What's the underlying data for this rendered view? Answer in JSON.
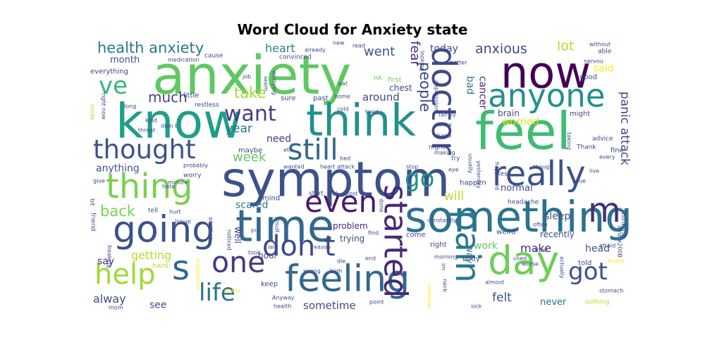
{
  "chart_data": {
    "type": "wordcloud",
    "title": "Word Cloud for Anxiety state",
    "colormap": "viridis",
    "background": "#ffffff",
    "words": [
      {
        "text": "anxiety",
        "weight": 1.0,
        "color": "#5ec962"
      },
      {
        "text": "feel",
        "weight": 0.98,
        "color": "#3fbc73"
      },
      {
        "text": "symptom",
        "weight": 0.95,
        "color": "#3b528b"
      },
      {
        "text": "know",
        "weight": 0.94,
        "color": "#1f9e89"
      },
      {
        "text": "think",
        "weight": 0.9,
        "color": "#21918c"
      },
      {
        "text": "time",
        "weight": 0.9,
        "color": "#31688e"
      },
      {
        "text": "now",
        "weight": 0.9,
        "color": "#440154"
      },
      {
        "text": "something",
        "weight": 0.89,
        "color": "#2c728e"
      },
      {
        "text": "day",
        "weight": 0.85,
        "color": "#6ece58"
      },
      {
        "text": "going",
        "weight": 0.83,
        "color": "#3b528b"
      },
      {
        "text": "feeling",
        "weight": 0.83,
        "color": "#31688e"
      },
      {
        "text": "doctor",
        "weight": 0.8,
        "color": "#3e4989"
      },
      {
        "text": "thing",
        "weight": 0.8,
        "color": "#7ad151"
      },
      {
        "text": "really",
        "weight": 0.8,
        "color": "#3b528b"
      },
      {
        "text": "m",
        "weight": 0.8,
        "color": "#472d7b"
      },
      {
        "text": "s",
        "weight": 0.8,
        "color": "#31688e"
      },
      {
        "text": "pain",
        "weight": 0.8,
        "color": "#2a788e"
      },
      {
        "text": "anyone",
        "weight": 0.78,
        "color": "#21918c"
      },
      {
        "text": "started",
        "weight": 0.78,
        "color": "#482878"
      },
      {
        "text": "even",
        "weight": 0.76,
        "color": "#481a6c"
      },
      {
        "text": "still",
        "weight": 0.75,
        "color": "#31688e"
      },
      {
        "text": "one",
        "weight": 0.75,
        "color": "#443983"
      },
      {
        "text": "don t",
        "weight": 0.74,
        "color": "#3e4989"
      },
      {
        "text": "help",
        "weight": 0.74,
        "color": "#a0da39"
      },
      {
        "text": "thought",
        "weight": 0.72,
        "color": "#3b528b"
      },
      {
        "text": "life",
        "weight": 0.7,
        "color": "#2c728e"
      },
      {
        "text": "got",
        "weight": 0.7,
        "color": "#3b528b"
      },
      {
        "text": "go",
        "weight": 0.7,
        "color": "#21918c"
      },
      {
        "text": "ve",
        "weight": 0.7,
        "color": "#35b779"
      },
      {
        "text": "want",
        "weight": 0.67,
        "color": "#433e85"
      },
      {
        "text": "health anxiety",
        "weight": 0.52,
        "color": "#2a788e"
      },
      {
        "text": "people",
        "weight": 0.52,
        "color": "#3e4989"
      },
      {
        "text": "back",
        "weight": 0.52,
        "color": "#7ad151"
      },
      {
        "text": "take",
        "weight": 0.52,
        "color": "#a0da39"
      },
      {
        "text": "much",
        "weight": 0.5,
        "color": "#414487"
      },
      {
        "text": "anxious",
        "weight": 0.48,
        "color": "#3e4989"
      },
      {
        "text": "lot",
        "weight": 0.48,
        "color": "#b5de2b"
      },
      {
        "text": "fear",
        "weight": 0.46,
        "color": "#482878"
      },
      {
        "text": "went",
        "weight": 0.46,
        "color": "#3b528b"
      },
      {
        "text": "week",
        "weight": 0.46,
        "color": "#5ec962"
      },
      {
        "text": "year",
        "weight": 0.42,
        "color": "#2c728e"
      },
      {
        "text": "panic attack",
        "weight": 0.42,
        "color": "#414487"
      },
      {
        "text": "will",
        "weight": 0.42,
        "color": "#b5de2b"
      },
      {
        "text": "felt",
        "weight": 0.42,
        "color": "#3b528b"
      },
      {
        "text": "heart",
        "weight": 0.4,
        "color": "#26828e"
      },
      {
        "text": "make",
        "weight": 0.4,
        "color": "#46327e"
      },
      {
        "text": "alway",
        "weight": 0.4,
        "color": "#3e4989"
      },
      {
        "text": "getting",
        "weight": 0.4,
        "color": "#b5de2b"
      },
      {
        "text": "sometime",
        "weight": 0.38,
        "color": "#3e4989"
      },
      {
        "text": "around",
        "weight": 0.38,
        "color": "#3e4989"
      },
      {
        "text": "cancer",
        "weight": 0.36,
        "color": "#482878"
      },
      {
        "text": "bad",
        "weight": 0.36,
        "color": "#2a788e"
      },
      {
        "text": "anything",
        "weight": 0.36,
        "color": "#3b528b"
      },
      {
        "text": "scared",
        "weight": 0.36,
        "color": "#2a788e"
      },
      {
        "text": "sleep",
        "weight": 0.36,
        "color": "#3b528b"
      },
      {
        "text": "today",
        "weight": 0.34,
        "color": "#3e4989"
      },
      {
        "text": "said",
        "weight": 0.34,
        "color": "#fde725"
      },
      {
        "text": "worried",
        "weight": 0.34,
        "color": "#d8e219"
      },
      {
        "text": "need",
        "weight": 0.34,
        "color": "#46327e"
      },
      {
        "text": "say",
        "weight": 0.34,
        "color": "#443983"
      },
      {
        "text": "head",
        "weight": 0.34,
        "color": "#3b528b"
      },
      {
        "text": "see",
        "weight": 0.34,
        "color": "#3e4989"
      },
      {
        "text": "work",
        "weight": 0.34,
        "color": "#5ec962"
      },
      {
        "text": "never",
        "weight": 0.32,
        "color": "#2c728e"
      },
      {
        "text": "way",
        "weight": 0.32,
        "color": "#2a788e"
      },
      {
        "text": "month",
        "weight": 0.32,
        "color": "#3b528b"
      },
      {
        "text": "normal",
        "weight": 0.32,
        "color": "#3e4989"
      },
      {
        "text": "chest",
        "weight": 0.3,
        "color": "#3e4989"
      },
      {
        "text": "brain",
        "weight": 0.3,
        "color": "#3e4989"
      },
      {
        "text": "well",
        "weight": 0.3,
        "color": "#443983"
      },
      {
        "text": "problem",
        "weight": 0.3,
        "color": "#482878"
      },
      {
        "text": "trying",
        "weight": 0.3,
        "color": "#3e4989"
      },
      {
        "text": "recently",
        "weight": 0.3,
        "color": "#3e4989"
      },
      {
        "text": "hour",
        "weight": 0.3,
        "color": "#3e4989"
      },
      {
        "text": "mind",
        "weight": 0.28,
        "color": "#3e4989"
      },
      {
        "text": "thinking",
        "weight": 0.28,
        "color": "#3e4989"
      },
      {
        "text": "everything",
        "weight": 0.28,
        "color": "#3e4989"
      },
      {
        "text": "maybe",
        "weight": 0.28,
        "color": "#3e4989"
      },
      {
        "text": "might",
        "weight": 0.28,
        "color": "#3e4989"
      },
      {
        "text": "good",
        "weight": 0.28,
        "color": "#3e4989"
      },
      {
        "text": "past",
        "weight": 0.28,
        "color": "#3e4989"
      },
      {
        "text": "sure",
        "weight": 0.28,
        "color": "#3e4989"
      },
      {
        "text": "first",
        "weight": 0.28,
        "color": "#7ad151"
      },
      {
        "text": "fine",
        "weight": 0.28,
        "color": "#3e4989"
      },
      {
        "text": "happen",
        "weight": 0.28,
        "color": "#3e4989"
      },
      {
        "text": "told",
        "weight": 0.28,
        "color": "#3e4989"
      },
      {
        "text": "keep",
        "weight": 0.28,
        "color": "#3e4989"
      },
      {
        "text": "body",
        "weight": 0.28,
        "color": "#3e4989"
      },
      {
        "text": "little",
        "weight": 0.28,
        "color": "#3e4989"
      },
      {
        "text": "hard",
        "weight": 0.28,
        "color": "#b5de2b"
      },
      {
        "text": "weird",
        "weight": 0.28,
        "color": "#3e4989"
      },
      {
        "text": "right",
        "weight": 0.28,
        "color": "#3e4989"
      },
      {
        "text": "come",
        "weight": 0.28,
        "color": "#3e4989"
      },
      {
        "text": "Thank",
        "weight": 0.26,
        "color": "#3e4989"
      },
      {
        "text": "advice",
        "weight": 0.26,
        "color": "#3e4989"
      },
      {
        "text": "test",
        "weight": 0.26,
        "color": "#3e4989"
      },
      {
        "text": "headache",
        "weight": 0.26,
        "color": "#3e4989"
      },
      {
        "text": "nothing",
        "weight": 0.26,
        "color": "#b5de2b"
      },
      {
        "text": "issue",
        "weight": 0.26,
        "color": "#3e4989"
      },
      {
        "text": "tell",
        "weight": 0.26,
        "color": "#3e4989"
      },
      {
        "text": "friend",
        "weight": 0.26,
        "color": "#3e4989"
      },
      {
        "text": "try",
        "weight": 0.26,
        "color": "#3e4989"
      },
      {
        "text": "night",
        "weight": 0.26,
        "color": "#3e4989"
      },
      {
        "text": "convinced",
        "weight": 0.26,
        "color": "#3e4989"
      },
      {
        "text": "cause",
        "weight": 0.26,
        "color": "#3e4989"
      },
      {
        "text": "worry",
        "weight": 0.26,
        "color": "#3e4989"
      },
      {
        "text": "restless",
        "weight": 0.26,
        "color": "#3e4989"
      },
      {
        "text": "able",
        "weight": 0.26,
        "color": "#3e4989"
      },
      {
        "text": "start",
        "weight": 0.26,
        "color": "#3e4989"
      },
      {
        "text": "look",
        "weight": 0.24,
        "color": "#3e4989"
      },
      {
        "text": "post",
        "weight": 0.24,
        "color": "#3e4989"
      },
      {
        "text": "done",
        "weight": 0.24,
        "color": "#3e4989"
      },
      {
        "text": "find",
        "weight": 0.24,
        "color": "#3e4989"
      },
      {
        "text": "reason",
        "weight": 0.24,
        "color": "#3e4989"
      },
      {
        "text": "put",
        "weight": 0.24,
        "color": "#3e4989"
      },
      {
        "text": "took",
        "weight": 0.24,
        "color": "#3e4989"
      },
      {
        "text": "last",
        "weight": 0.24,
        "color": "#3e4989"
      },
      {
        "text": "wrong",
        "weight": 0.24,
        "color": "#3e4989"
      },
      {
        "text": "high",
        "weight": 0.24,
        "color": "#3e4989"
      },
      {
        "text": "end",
        "weight": 0.24,
        "color": "#3e4989"
      },
      {
        "text": "talk",
        "weight": 0.24,
        "color": "#3e4989"
      },
      {
        "text": "im",
        "weight": 0.24,
        "color": "#3e4989"
      },
      {
        "text": "die",
        "weight": 0.24,
        "color": "#3e4989"
      },
      {
        "text": "stress",
        "weight": 0.24,
        "color": "#fde725"
      },
      {
        "text": "hurt",
        "weight": 0.24,
        "color": "#3e4989"
      },
      {
        "text": "probably",
        "weight": 0.24,
        "color": "#3e4989"
      },
      {
        "text": "wanted",
        "weight": 0.24,
        "color": "#3e4989"
      },
      {
        "text": "bed",
        "weight": 0.24,
        "color": "#3e4989"
      },
      {
        "text": "heart attack",
        "weight": 0.24,
        "color": "#3e4989"
      },
      {
        "text": "stop",
        "weight": 0.24,
        "color": "#3e4989"
      },
      {
        "text": "eye",
        "weight": 0.24,
        "color": "#3e4989"
      },
      {
        "text": "usually",
        "weight": 0.24,
        "color": "#3e4989"
      },
      {
        "text": "yesterday",
        "weight": 0.24,
        "color": "#3e4989"
      },
      {
        "text": "making",
        "weight": 0.24,
        "color": "#3e4989"
      },
      {
        "text": "hand",
        "weight": 0.24,
        "color": "#3e4989"
      },
      {
        "text": "family",
        "weight": 0.24,
        "color": "#3e4989"
      },
      {
        "text": "okay",
        "weight": 0.24,
        "color": "#3e4989"
      },
      {
        "text": "better",
        "weight": 0.24,
        "color": "#3e4989"
      },
      {
        "text": "depression",
        "weight": 0.24,
        "color": "#3e4989"
      },
      {
        "text": "looking",
        "weight": 0.24,
        "color": "#3e4989"
      },
      {
        "text": "tired",
        "weight": 0.24,
        "color": "#3e4989"
      },
      {
        "text": "cold",
        "weight": 0.24,
        "color": "#3e4989"
      },
      {
        "text": "eat",
        "weight": 0.24,
        "color": "#3e4989"
      },
      {
        "text": "home",
        "weight": 0.24,
        "color": "#3e4989"
      },
      {
        "text": "job",
        "weight": 0.24,
        "color": "#3e4989"
      },
      {
        "text": "seem",
        "weight": 0.24,
        "color": "#3e4989"
      },
      {
        "text": "worrying",
        "weight": 0.24,
        "color": "#3e4989"
      },
      {
        "text": "HA",
        "weight": 0.24,
        "color": "#5ec962"
      },
      {
        "text": "new",
        "weight": 0.24,
        "color": "#3e4989"
      },
      {
        "text": "read",
        "weight": 0.24,
        "color": "#3e4989"
      },
      {
        "text": "already",
        "weight": 0.24,
        "color": "#3e4989"
      },
      {
        "text": "medication",
        "weight": 0.24,
        "color": "#3e4989"
      },
      {
        "text": "without",
        "weight": 0.24,
        "color": "#3e4989"
      },
      {
        "text": "nervou",
        "weight": 0.24,
        "color": "#3e4989"
      },
      {
        "text": "long",
        "weight": 0.24,
        "color": "#3e4989"
      },
      {
        "text": "made",
        "weight": 0.24,
        "color": "#b5de2b"
      },
      {
        "text": "right now",
        "weight": 0.24,
        "color": "#3e4989"
      },
      {
        "text": "kind",
        "weight": 0.24,
        "color": "#3e4989"
      },
      {
        "text": "throat",
        "weight": 0.24,
        "color": "#3e4989"
      },
      {
        "text": "didn t",
        "weight": 0.24,
        "color": "#3e4989"
      },
      {
        "text": "etc",
        "weight": 0.24,
        "color": "#3e4989"
      },
      {
        "text": "give",
        "weight": 0.24,
        "color": "#3e4989"
      },
      {
        "text": "hate",
        "weight": 0.24,
        "color": "#3e4989"
      },
      {
        "text": "minute",
        "weight": 0.24,
        "color": "#3e4989"
      },
      {
        "text": "bit",
        "weight": 0.24,
        "color": "#3e4989"
      },
      {
        "text": "another",
        "weight": 0.24,
        "color": "#3e4989"
      },
      {
        "text": "noticed",
        "weight": 0.24,
        "color": "#3e4989"
      },
      {
        "text": "result",
        "weight": 0.24,
        "color": "#3e4989"
      },
      {
        "text": "freaking",
        "weight": 0.24,
        "color": "#3e4989"
      },
      {
        "text": "experience",
        "weight": 0.24,
        "color": "#fde725"
      },
      {
        "text": "Anyway",
        "weight": 0.24,
        "color": "#3e4989"
      },
      {
        "text": "health",
        "weight": 0.24,
        "color": "#3e4989"
      },
      {
        "text": "mom",
        "weight": 0.24,
        "color": "#3e4989"
      },
      {
        "text": "point",
        "weight": 0.24,
        "color": "#3e4989"
      },
      {
        "text": "someone",
        "weight": 0.24,
        "color": "#fde725"
      },
      {
        "text": "neck",
        "weight": 0.24,
        "color": "#3e4989"
      },
      {
        "text": "almost",
        "weight": 0.24,
        "color": "#3e4989"
      },
      {
        "text": "sick",
        "weight": 0.24,
        "color": "#3e4989"
      },
      {
        "text": "stomach",
        "weight": 0.24,
        "color": "#3e4989"
      },
      {
        "text": "actually",
        "weight": 0.24,
        "color": "#3e4989"
      },
      {
        "text": "worse",
        "weight": 0.24,
        "color": "#3e4989"
      },
      {
        "text": "used",
        "weight": 0.24,
        "color": "#3e4989"
      },
      {
        "text": "tried",
        "weight": 0.24,
        "color": "#3e4989"
      },
      {
        "text": "morning",
        "weight": 0.24,
        "color": "#3e4989"
      },
      {
        "text": "constantly",
        "weight": 0.24,
        "color": "#3e4989"
      },
      {
        "text": "often",
        "weight": 0.24,
        "color": "#3e4989"
      },
      {
        "text": "found",
        "weight": 0.24,
        "color": "#fde725"
      },
      {
        "text": "afraid",
        "weight": 0.24,
        "color": "#3e4989"
      },
      {
        "text": "amp x200B",
        "weight": 0.24,
        "color": "#3e4989"
      },
      {
        "text": "live",
        "weight": 0.24,
        "color": "#3e4989"
      },
      {
        "text": "due",
        "weight": 0.24,
        "color": "#3e4989"
      },
      {
        "text": "every",
        "weight": 0.24,
        "color": "#3e4989"
      },
      {
        "text": "taking",
        "weight": 0.24,
        "color": "#3e4989"
      },
      {
        "text": "though",
        "weight": 0.24,
        "color": "#3e4989"
      },
      {
        "text": "happened",
        "weight": 0.24,
        "color": "#3e4989"
      }
    ]
  }
}
